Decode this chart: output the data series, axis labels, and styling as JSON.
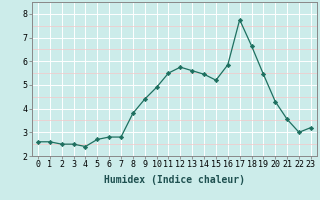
{
  "xlabel": "Humidex (Indice chaleur)",
  "x": [
    0,
    1,
    2,
    3,
    4,
    5,
    6,
    7,
    8,
    9,
    10,
    11,
    12,
    13,
    14,
    15,
    16,
    17,
    18,
    19,
    20,
    21,
    22,
    23
  ],
  "y": [
    2.6,
    2.6,
    2.5,
    2.5,
    2.4,
    2.7,
    2.8,
    2.8,
    3.8,
    4.4,
    4.9,
    5.5,
    5.75,
    5.6,
    5.45,
    5.2,
    5.85,
    7.75,
    6.65,
    5.45,
    4.3,
    3.55,
    3.0,
    3.2
  ],
  "line_color": "#1e7060",
  "marker": "D",
  "marker_size": 2.2,
  "bg_color": "#ccecea",
  "grid_color_major": "#ffffff",
  "grid_color_minor": "#f5c8c8",
  "label_fontsize": 7,
  "tick_fontsize": 6,
  "ylim": [
    2.0,
    8.5
  ],
  "yticks": [
    2,
    3,
    4,
    5,
    6,
    7,
    8
  ],
  "spine_color": "#888888"
}
